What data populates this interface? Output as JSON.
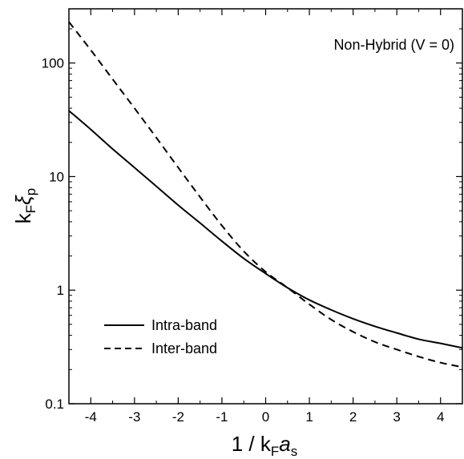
{
  "chart_data": {
    "type": "line",
    "title": "",
    "annotation": "Non-Hybrid (V = 0)",
    "xlabel": {
      "base": "1 / k",
      "sub1": "F",
      "italic": "a",
      "sub2": "s"
    },
    "ylabel": {
      "base": "k",
      "sub1": "F",
      "greek": "ξ",
      "sub2": "p"
    },
    "xlim": [
      -4.5,
      4.5
    ],
    "ylim": [
      0.1,
      300
    ],
    "yscale": "log",
    "x_ticks": [
      -4,
      -3,
      -2,
      -1,
      0,
      1,
      2,
      3,
      4
    ],
    "x_tick_labels": [
      "-4",
      "-3",
      "-2",
      "-1",
      "0",
      "1",
      "2",
      "3",
      "4"
    ],
    "y_ticks": [
      0.1,
      1,
      10,
      100
    ],
    "y_tick_labels": [
      "0.1",
      "1",
      "10",
      "100"
    ],
    "grid": false,
    "legend_position": "bottom-left",
    "series": [
      {
        "name": "Intra-band",
        "style": "solid",
        "x": [
          -4.5,
          -4,
          -3.5,
          -3,
          -2.5,
          -2,
          -1.5,
          -1,
          -0.5,
          0,
          0.5,
          1,
          1.5,
          2,
          2.5,
          3,
          3.5,
          4,
          4.5
        ],
        "y": [
          38,
          26,
          17.5,
          12,
          8.2,
          5.6,
          3.9,
          2.7,
          1.9,
          1.4,
          1.05,
          0.82,
          0.67,
          0.56,
          0.48,
          0.42,
          0.37,
          0.34,
          0.31
        ]
      },
      {
        "name": "Inter-band",
        "style": "dashed",
        "x": [
          -4.5,
          -4,
          -3.5,
          -3,
          -2.5,
          -2,
          -1.5,
          -1,
          -0.5,
          0,
          0.5,
          1,
          1.5,
          2,
          2.5,
          3,
          3.5,
          4,
          4.5
        ],
        "y": [
          230,
          130,
          72,
          40,
          22,
          12,
          6.6,
          3.7,
          2.2,
          1.45,
          1.05,
          0.75,
          0.55,
          0.43,
          0.35,
          0.3,
          0.26,
          0.23,
          0.21
        ]
      }
    ]
  }
}
